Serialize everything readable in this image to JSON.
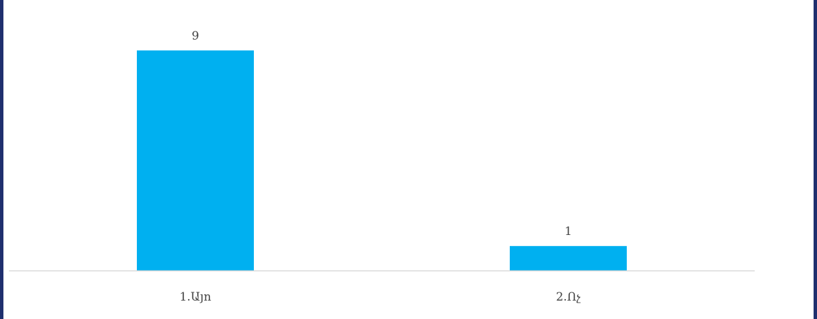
{
  "chart_data": {
    "type": "bar",
    "categories": [
      "1.Այո",
      "2.Ոչ"
    ],
    "values": [
      9,
      1
    ],
    "data_labels": [
      "9",
      "1"
    ],
    "ylim": [
      0,
      10
    ],
    "grid": false,
    "legend": "none",
    "title": "",
    "xlabel": "",
    "ylabel": "",
    "colors": {
      "bar": "#00b0f0",
      "axis": "#d9d9d9",
      "frame": "#1f2f6e",
      "text": "#404040"
    }
  }
}
